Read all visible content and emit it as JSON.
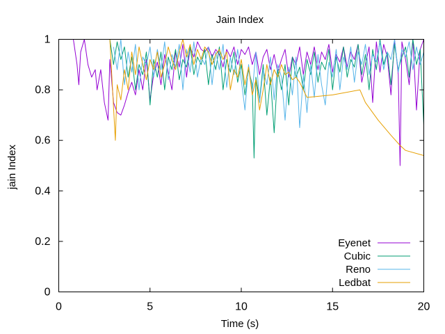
{
  "chart_data": {
    "type": "line",
    "title": "Jain Index",
    "xlabel": "Time (s)",
    "ylabel": "jain Index",
    "xlim": [
      0,
      20
    ],
    "ylim": [
      0,
      1
    ],
    "x_ticks": [
      0,
      5,
      10,
      15,
      20
    ],
    "y_ticks": [
      0,
      0.2,
      0.4,
      0.6,
      0.8,
      1
    ],
    "grid": false,
    "legend_position": "bottom-right",
    "series": [
      {
        "name": "Eyenet",
        "color": "#9400d3",
        "x": [
          0.8,
          1.0,
          1.1,
          1.2,
          1.4,
          1.6,
          1.8,
          2.0,
          2.1,
          2.3,
          2.5,
          2.7,
          2.8,
          3.0,
          3.2,
          3.4,
          3.6,
          3.8,
          4.0,
          4.2,
          4.4,
          4.6,
          4.8,
          5.0,
          5.2,
          5.4,
          5.6,
          5.8,
          6.0,
          6.2,
          6.4,
          6.6,
          6.8,
          7.0,
          7.2,
          7.4,
          7.6,
          7.8,
          8.0,
          8.2,
          8.4,
          8.6,
          8.8,
          9.0,
          9.2,
          9.4,
          9.6,
          9.8,
          10.0,
          10.2,
          10.4,
          10.6,
          10.8,
          11.0,
          11.2,
          11.4,
          11.6,
          11.8,
          12.0,
          12.2,
          12.4,
          12.6,
          12.8,
          13.0,
          13.2,
          13.4,
          13.6,
          13.8,
          14.0,
          14.2,
          14.4,
          14.6,
          14.8,
          15.0,
          15.2,
          15.4,
          15.6,
          15.8,
          16.0,
          16.2,
          16.4,
          16.6,
          16.8,
          17.0,
          17.2,
          17.4,
          17.6,
          17.8,
          18.0,
          18.2,
          18.4,
          18.6,
          18.7,
          18.8,
          19.0,
          19.2,
          19.4,
          19.6,
          19.8,
          20.0
        ],
        "values": [
          1.0,
          0.9,
          0.82,
          0.95,
          1.0,
          0.9,
          0.85,
          0.88,
          0.8,
          0.88,
          0.75,
          0.68,
          0.92,
          0.75,
          0.71,
          0.7,
          0.74,
          0.79,
          0.83,
          0.78,
          0.88,
          0.8,
          0.92,
          0.76,
          0.86,
          0.91,
          0.82,
          0.94,
          0.87,
          0.8,
          0.95,
          0.89,
          0.98,
          0.85,
          0.97,
          0.93,
          0.99,
          0.96,
          0.95,
          0.97,
          0.93,
          0.96,
          0.94,
          0.89,
          0.96,
          0.93,
          0.97,
          0.9,
          0.96,
          0.94,
          0.97,
          0.9,
          0.95,
          0.86,
          0.93,
          0.96,
          0.88,
          0.94,
          0.87,
          0.92,
          0.96,
          0.85,
          0.93,
          0.9,
          0.97,
          0.86,
          0.95,
          0.9,
          0.97,
          0.88,
          0.95,
          0.92,
          0.98,
          0.87,
          0.94,
          0.91,
          0.97,
          0.89,
          0.95,
          0.92,
          0.98,
          0.83,
          0.9,
          0.97,
          0.75,
          0.99,
          0.87,
          0.98,
          0.93,
          0.78,
          1.0,
          0.86,
          0.5,
          0.99,
          0.92,
          0.82,
          1.0,
          0.72,
          0.96,
          1.0
        ]
      },
      {
        "name": "Cubic",
        "color": "#009e73",
        "x": [
          2.8,
          3.0,
          3.2,
          3.4,
          3.6,
          3.8,
          4.0,
          4.2,
          4.4,
          4.6,
          4.8,
          5.0,
          5.2,
          5.4,
          5.6,
          5.8,
          6.0,
          6.2,
          6.4,
          6.6,
          6.8,
          7.0,
          7.2,
          7.4,
          7.6,
          7.8,
          8.0,
          8.2,
          8.4,
          8.6,
          8.8,
          9.0,
          9.2,
          9.4,
          9.6,
          9.8,
          10.0,
          10.2,
          10.4,
          10.6,
          10.7,
          10.8,
          11.0,
          11.2,
          11.4,
          11.6,
          11.8,
          12.0,
          12.2,
          12.4,
          12.6,
          12.8,
          13.0,
          13.2,
          13.4,
          13.6,
          13.8,
          14.0,
          14.2,
          14.4,
          14.6,
          14.8,
          15.0,
          15.2,
          15.4,
          15.6,
          15.8,
          16.0,
          16.2,
          16.4,
          16.6,
          16.8,
          17.0,
          17.2,
          17.4,
          17.6,
          17.8,
          18.0,
          18.2,
          18.4,
          18.6,
          18.8,
          19.0,
          19.2,
          19.4,
          19.6,
          19.8,
          20.0
        ],
        "values": [
          1.0,
          0.9,
          0.99,
          0.92,
          0.97,
          0.85,
          0.93,
          0.8,
          0.9,
          0.86,
          0.95,
          0.74,
          0.92,
          0.85,
          0.95,
          0.8,
          0.93,
          0.88,
          0.96,
          0.84,
          0.92,
          0.89,
          0.97,
          0.86,
          0.93,
          0.9,
          0.96,
          0.82,
          0.94,
          0.88,
          0.97,
          0.8,
          0.92,
          0.87,
          0.95,
          0.83,
          0.9,
          0.78,
          0.88,
          0.82,
          0.53,
          0.85,
          0.76,
          0.9,
          0.7,
          0.85,
          0.63,
          0.88,
          0.8,
          0.9,
          0.74,
          0.93,
          0.85,
          0.89,
          0.8,
          0.92,
          0.86,
          0.95,
          0.83,
          0.91,
          0.88,
          0.96,
          0.8,
          0.93,
          0.87,
          0.97,
          0.85,
          0.92,
          0.89,
          0.98,
          0.86,
          0.94,
          0.8,
          0.96,
          0.88,
          1.0,
          0.9,
          0.95,
          0.82,
          0.98,
          0.88,
          0.93,
          0.97,
          0.85,
          1.0,
          0.9,
          0.96,
          0.66
        ]
      },
      {
        "name": "Reno",
        "color": "#56b4e9",
        "x": [
          3.0,
          3.2,
          3.4,
          3.6,
          3.8,
          4.0,
          4.2,
          4.4,
          4.6,
          4.8,
          5.0,
          5.2,
          5.4,
          5.6,
          5.8,
          6.0,
          6.2,
          6.4,
          6.6,
          6.8,
          7.0,
          7.2,
          7.4,
          7.6,
          7.8,
          8.0,
          8.2,
          8.4,
          8.6,
          8.8,
          9.0,
          9.2,
          9.4,
          9.6,
          9.8,
          10.0,
          10.2,
          10.4,
          10.6,
          10.8,
          11.0,
          11.2,
          11.4,
          11.6,
          11.8,
          12.0,
          12.2,
          12.4,
          12.6,
          12.8,
          13.0,
          13.2,
          13.4,
          13.6,
          13.8,
          14.0,
          14.2,
          14.4,
          14.6,
          14.8,
          15.0,
          15.2,
          15.4,
          15.6,
          15.8,
          16.0,
          16.2,
          16.4,
          16.6,
          16.8,
          17.0,
          17.2,
          17.4,
          17.6,
          17.8,
          18.0,
          18.2,
          18.4,
          18.6,
          18.8,
          19.0,
          19.2,
          19.4,
          19.6,
          19.8,
          20.0
        ],
        "values": [
          0.97,
          0.88,
          1.0,
          0.82,
          0.95,
          0.87,
          0.98,
          0.8,
          0.93,
          0.9,
          0.97,
          0.85,
          0.96,
          0.88,
          0.99,
          0.84,
          0.94,
          0.89,
          0.98,
          0.8,
          0.96,
          0.87,
          0.99,
          0.85,
          0.93,
          0.9,
          0.97,
          0.82,
          0.95,
          0.88,
          0.98,
          0.81,
          0.93,
          0.86,
          0.96,
          0.84,
          0.72,
          0.9,
          0.79,
          0.95,
          0.75,
          0.88,
          0.82,
          0.93,
          0.76,
          0.9,
          0.85,
          0.68,
          0.89,
          0.78,
          0.93,
          0.65,
          0.86,
          0.71,
          0.9,
          0.77,
          0.94,
          0.82,
          0.74,
          0.91,
          0.85,
          0.96,
          0.8,
          0.93,
          0.88,
          0.97,
          0.83,
          0.95,
          0.9,
          0.98,
          0.86,
          0.94,
          0.91,
          0.99,
          0.88,
          0.95,
          0.92,
          1.0,
          0.87,
          0.96,
          0.93,
          0.99,
          0.88,
          0.97,
          0.9,
          0.95
        ]
      },
      {
        "name": "Ledbat",
        "color": "#e69f00",
        "x": [
          2.8,
          3.0,
          3.1,
          3.2,
          3.4,
          3.6,
          3.8,
          4.0,
          4.2,
          4.4,
          4.6,
          4.8,
          5.0,
          5.2,
          5.4,
          5.6,
          5.8,
          6.0,
          6.2,
          6.4,
          6.6,
          6.8,
          7.0,
          7.2,
          7.4,
          7.6,
          7.8,
          8.0,
          8.2,
          8.4,
          8.6,
          8.8,
          9.0,
          9.2,
          9.4,
          9.6,
          9.8,
          10.0,
          10.2,
          10.4,
          10.6,
          10.8,
          11.0,
          11.2,
          11.4,
          11.6,
          11.8,
          12.0,
          12.2,
          12.4,
          12.6,
          12.8,
          13.0,
          13.2,
          13.6,
          15.0,
          16.5,
          16.8,
          17.5,
          18.2,
          18.7,
          19.0,
          20.0
        ],
        "values": [
          1.0,
          0.73,
          0.6,
          0.82,
          0.76,
          0.88,
          0.8,
          0.95,
          0.86,
          0.97,
          0.9,
          0.84,
          0.92,
          0.88,
          0.95,
          0.85,
          0.9,
          0.97,
          0.92,
          0.88,
          0.95,
          1.0,
          0.93,
          0.98,
          0.9,
          0.96,
          0.92,
          0.97,
          0.95,
          0.9,
          0.94,
          0.96,
          0.92,
          0.95,
          0.8,
          0.88,
          0.85,
          0.92,
          0.82,
          0.89,
          0.78,
          0.84,
          0.72,
          0.8,
          0.9,
          0.82,
          0.88,
          0.85,
          0.9,
          0.86,
          0.87,
          0.84,
          0.85,
          0.83,
          0.77,
          0.78,
          0.8,
          0.75,
          0.68,
          0.62,
          0.58,
          0.56,
          0.54
        ]
      }
    ]
  }
}
